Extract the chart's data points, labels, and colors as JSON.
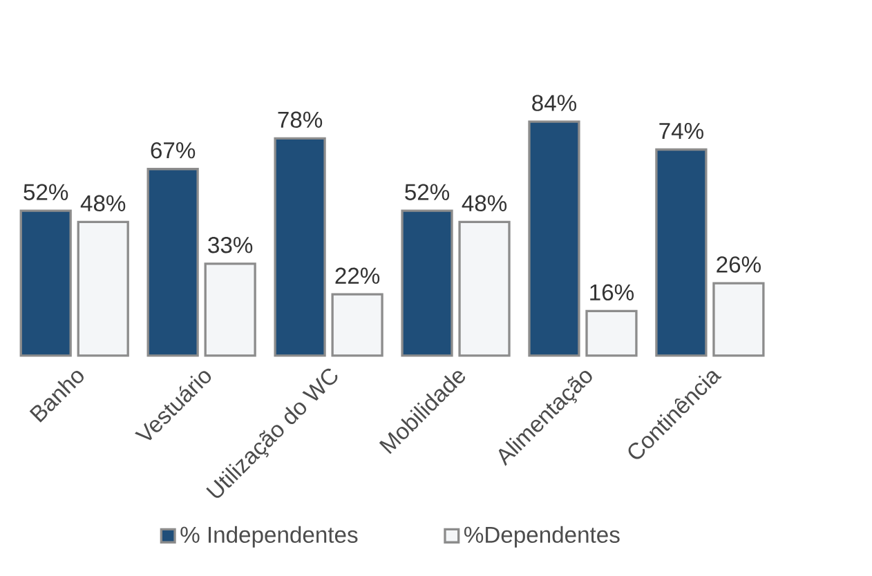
{
  "chart_data": {
    "type": "bar",
    "categories": [
      "Banho",
      "Vestuário",
      "Utilização do WC",
      "Mobilidade",
      "Alimentação",
      "Continência"
    ],
    "series": [
      {
        "name": "% Independentes",
        "color": "#1f4e79",
        "values": [
          52,
          67,
          78,
          52,
          84,
          74
        ],
        "value_labels": [
          "52%",
          "67%",
          "78%",
          "52%",
          "84%",
          "74%"
        ]
      },
      {
        "name": "%Dependentes",
        "color": "#f4f6f8",
        "values": [
          48,
          33,
          22,
          48,
          16,
          26
        ],
        "value_labels": [
          "48%",
          "33%",
          "22%",
          "48%",
          "16%",
          "26%"
        ]
      }
    ],
    "legend": "bottom"
  }
}
